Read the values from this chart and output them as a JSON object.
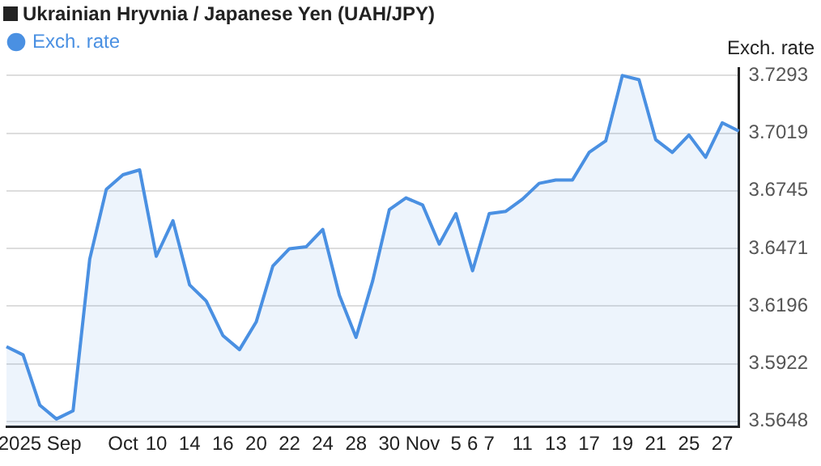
{
  "chart_data": {
    "type": "area",
    "title": "Ukrainian Hryvnia / Japanese Yen (UAH/JPY)",
    "ylabel": "Exch. rate",
    "categories": [
      null,
      null,
      "2025 Sep",
      null,
      null,
      null,
      null,
      "Oct",
      null,
      "10",
      null,
      "14",
      null,
      "16",
      null,
      "20",
      null,
      "22",
      null,
      "24",
      null,
      "28",
      null,
      "30",
      null,
      "Nov",
      null,
      "5",
      "6",
      "7",
      null,
      "11",
      null,
      "13",
      null,
      "17",
      null,
      "19",
      null,
      "21",
      null,
      "25",
      null,
      "27",
      null
    ],
    "series": [
      {
        "name": "Exch. rate",
        "color": "#4a90e2",
        "values": [
          3.6003,
          3.5964,
          3.5725,
          3.5659,
          3.5698,
          3.6419,
          3.6752,
          3.6821,
          3.6844,
          3.6433,
          3.6602,
          3.6297,
          3.622,
          3.6056,
          3.5989,
          3.612,
          3.6386,
          3.6469,
          3.6478,
          3.6561,
          3.6247,
          3.6047,
          3.6316,
          3.6655,
          3.6711,
          3.6677,
          3.6491,
          3.6636,
          3.6364,
          3.6636,
          3.6647,
          3.6705,
          3.678,
          3.6796,
          3.6796,
          3.6927,
          3.6982,
          3.7293,
          3.7273,
          3.6988,
          3.6927,
          3.701,
          3.6904,
          3.7068,
          3.7029
        ]
      }
    ],
    "ylim": [
      3.5623,
      3.7329
    ],
    "yticks": [
      3.5648,
      3.5922,
      3.6196,
      3.6471,
      3.6745,
      3.7019,
      3.7293
    ],
    "grid": "y",
    "legend": "top left",
    "marker": "none"
  }
}
